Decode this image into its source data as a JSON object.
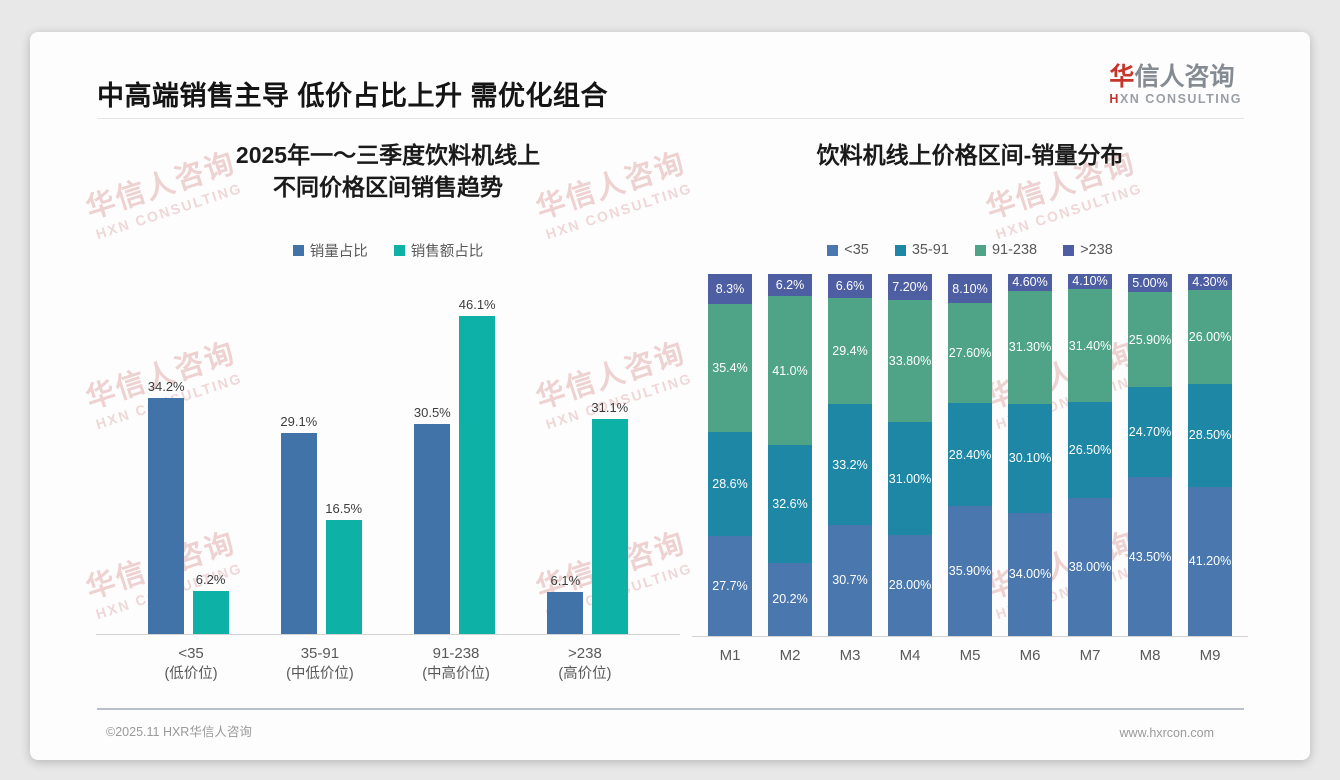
{
  "page": {
    "title": "中高端销售主导 低价占比上升 需优化组合",
    "logo": {
      "zh_red": "华",
      "zh_rest": "信人咨询",
      "en_red": "H",
      "en_rest": "XN CONSULTING"
    },
    "watermark": {
      "zh": "华信人咨询",
      "en": "HXN CONSULTING"
    },
    "footer": {
      "left": "©2025.11 HXR华信人咨询",
      "right": "www.hxrcon.com"
    }
  },
  "colors": {
    "accent_red": "#c7342c",
    "left_blue": "#4273a8",
    "left_teal": "#0db1a5",
    "stack_lt35": "#4a77ad",
    "stack_35_91": "#1e87a5",
    "stack_91_238": "#4fa487",
    "stack_gt238": "#4e5ea3",
    "axis_line": "#d2d2d2"
  },
  "chart_data": [
    {
      "type": "bar",
      "title_lines": [
        "2025年一～三季度饮料机线上",
        "不同价格区间销售趋势"
      ],
      "categories": [
        "<35",
        "35-91",
        "91-238",
        ">238"
      ],
      "category_sublabels": [
        "(低价位)",
        "(中低价位)",
        "(中高价位)",
        "(高价位)"
      ],
      "series": [
        {
          "name": "销量占比",
          "color": "#4273a8",
          "values": [
            34.2,
            29.1,
            30.5,
            6.1
          ],
          "labels": [
            "34.2%",
            "29.1%",
            "30.5%",
            "6.1%"
          ]
        },
        {
          "name": "销售额占比",
          "color": "#0db1a5",
          "values": [
            6.2,
            16.5,
            46.1,
            31.1
          ],
          "labels": [
            "6.2%",
            "16.5%",
            "46.1%",
            "31.1%"
          ]
        }
      ],
      "ylabel": "",
      "xlabel": "",
      "ylim": [
        0,
        50
      ],
      "grid": false,
      "legend_position": "top"
    },
    {
      "type": "bar",
      "stacked": true,
      "percent_stacked": true,
      "title": "饮料机线上价格区间-销量分布",
      "categories": [
        "M1",
        "M2",
        "M3",
        "M4",
        "M5",
        "M6",
        "M7",
        "M8",
        "M9"
      ],
      "series": [
        {
          "name": "<35",
          "color": "#4a77ad",
          "values": [
            27.7,
            20.2,
            30.7,
            28.0,
            35.9,
            34.0,
            38.0,
            43.5,
            41.2
          ],
          "labels": [
            "27.7%",
            "20.2%",
            "30.7%",
            "28.00%",
            "35.90%",
            "34.00%",
            "38.00%",
            "43.50%",
            "41.20%"
          ]
        },
        {
          "name": "35-91",
          "color": "#1e87a5",
          "values": [
            28.6,
            32.6,
            33.2,
            31.0,
            28.4,
            30.1,
            26.5,
            24.7,
            28.5
          ],
          "labels": [
            "28.6%",
            "32.6%",
            "33.2%",
            "31.00%",
            "28.40%",
            "30.10%",
            "26.50%",
            "24.70%",
            "28.50%"
          ]
        },
        {
          "name": "91-238",
          "color": "#4fa487",
          "values": [
            35.4,
            41.0,
            29.4,
            33.8,
            27.6,
            31.3,
            31.4,
            25.9,
            26.0
          ],
          "labels": [
            "35.4%",
            "41.0%",
            "29.4%",
            "33.80%",
            "27.60%",
            "31.30%",
            "31.40%",
            "25.90%",
            "26.00%"
          ]
        },
        {
          "name": ">238",
          "color": "#4e5ea3",
          "values": [
            8.3,
            6.2,
            6.6,
            7.2,
            8.1,
            4.6,
            4.1,
            5.0,
            4.3
          ],
          "labels": [
            "8.3%",
            "6.2%",
            "6.6%",
            "7.20%",
            "8.10%",
            "4.60%",
            "4.10%",
            "5.00%",
            "4.30%"
          ]
        }
      ],
      "ylabel": "",
      "xlabel": "",
      "grid": false,
      "legend_position": "top"
    }
  ]
}
